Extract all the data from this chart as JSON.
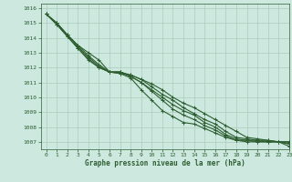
{
  "title": "Graphe pression niveau de la mer (hPa)",
  "bg_color": "#cce8df",
  "grid_color": "#aaccbb",
  "line_color": "#2d5e30",
  "xlim": [
    -0.5,
    23
  ],
  "ylim": [
    1006.5,
    1016.3
  ],
  "yticks": [
    1007,
    1008,
    1009,
    1010,
    1011,
    1012,
    1013,
    1014,
    1015,
    1016
  ],
  "xticks": [
    0,
    1,
    2,
    3,
    4,
    5,
    6,
    7,
    8,
    9,
    10,
    11,
    12,
    13,
    14,
    15,
    16,
    17,
    18,
    19,
    20,
    21,
    22,
    23
  ],
  "series": [
    [
      1015.6,
      1015.0,
      1014.2,
      1013.5,
      1013.0,
      1012.5,
      1011.7,
      1011.6,
      1011.5,
      1011.2,
      1010.9,
      1010.5,
      1010.0,
      1009.6,
      1009.3,
      1008.9,
      1008.5,
      1008.1,
      1007.7,
      1007.3,
      1007.2,
      1007.1,
      1007.0,
      1007.0
    ],
    [
      1015.6,
      1015.0,
      1014.2,
      1013.5,
      1012.8,
      1012.2,
      1011.7,
      1011.7,
      1011.5,
      1011.2,
      1010.7,
      1010.2,
      1009.8,
      1009.3,
      1008.9,
      1008.5,
      1008.2,
      1007.7,
      1007.3,
      1007.2,
      1007.1,
      1007.1,
      1007.0,
      1007.0
    ],
    [
      1015.6,
      1015.0,
      1014.2,
      1013.4,
      1012.7,
      1012.1,
      1011.7,
      1011.7,
      1011.4,
      1011.0,
      1010.5,
      1010.0,
      1009.5,
      1009.1,
      1008.8,
      1008.3,
      1008.0,
      1007.5,
      1007.2,
      1007.1,
      1007.1,
      1007.0,
      1007.0,
      1006.9
    ],
    [
      1015.6,
      1014.9,
      1014.1,
      1013.3,
      1012.6,
      1012.0,
      1011.7,
      1011.7,
      1011.4,
      1011.0,
      1010.4,
      1009.8,
      1009.2,
      1008.8,
      1008.5,
      1008.1,
      1007.8,
      1007.4,
      1007.1,
      1007.1,
      1007.0,
      1007.0,
      1007.0,
      1006.85
    ],
    [
      1015.6,
      1014.9,
      1014.1,
      1013.3,
      1012.5,
      1012.0,
      1011.7,
      1011.6,
      1011.3,
      1010.5,
      1009.8,
      1009.1,
      1008.7,
      1008.3,
      1008.2,
      1007.9,
      1007.6,
      1007.3,
      1007.1,
      1007.0,
      1007.0,
      1007.0,
      1007.0,
      1006.7
    ]
  ],
  "figsize": [
    3.2,
    2.0
  ],
  "dpi": 100
}
